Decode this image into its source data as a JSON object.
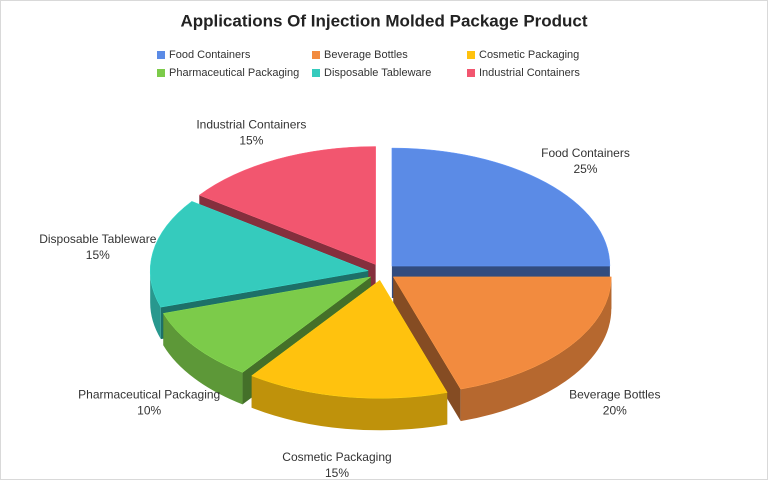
{
  "chart_data": {
    "type": "pie",
    "title": "Applications Of Injection Molded Package Product",
    "categories": [
      "Food Containers",
      "Beverage Bottles",
      "Cosmetic Packaging",
      "Pharmaceutical Packaging",
      "Disposable Tableware",
      "Industrial Containers"
    ],
    "values": [
      25,
      20,
      15,
      10,
      15,
      15
    ],
    "value_labels": [
      "25%",
      "20%",
      "15%",
      "10%",
      "15%",
      "15%"
    ],
    "colors": [
      "#5b8be6",
      "#f28b3f",
      "#ffc20e",
      "#7ccb4a",
      "#35cbbd",
      "#f2566f"
    ],
    "legend": "top"
  }
}
